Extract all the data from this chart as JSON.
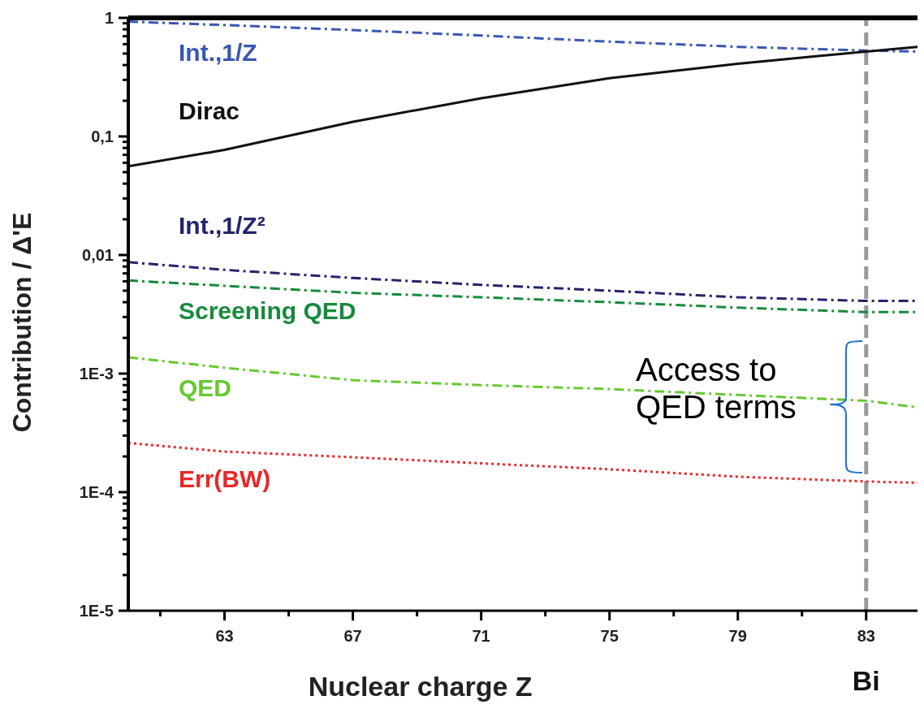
{
  "chart_data": {
    "type": "line",
    "xlabel": "Nuclear charge  Z",
    "ylabel": "Contribution / Δ'E",
    "log": "y",
    "marker": "none",
    "xlim": [
      60,
      84.6
    ],
    "ylim": [
      1e-05,
      1
    ],
    "xticks": [
      {
        "value": 61,
        "label": null
      },
      63,
      {
        "value": 65,
        "label": null
      },
      67,
      {
        "value": 69,
        "label": null
      },
      71,
      {
        "value": 73,
        "label": null
      },
      75,
      {
        "value": 77,
        "label": null
      },
      79,
      {
        "value": 81,
        "label": null
      },
      83
    ],
    "yticks": [
      {
        "value": 1e-05,
        "label": "1E-5"
      },
      {
        "value": 2e-05,
        "label": null
      },
      {
        "value": 3e-05,
        "label": null
      },
      {
        "value": 4e-05,
        "label": null
      },
      {
        "value": 5e-05,
        "label": null
      },
      {
        "value": 6e-05,
        "label": null
      },
      {
        "value": 7e-05,
        "label": null
      },
      {
        "value": 8e-05,
        "label": null
      },
      {
        "value": 9e-05,
        "label": null
      },
      {
        "value": 0.0001,
        "label": "1E-4"
      },
      {
        "value": 0.0002,
        "label": null
      },
      {
        "value": 0.0003,
        "label": null
      },
      {
        "value": 0.0004,
        "label": null
      },
      {
        "value": 0.0005,
        "label": null
      },
      {
        "value": 0.0006,
        "label": null
      },
      {
        "value": 0.0007,
        "label": null
      },
      {
        "value": 0.0008,
        "label": null
      },
      {
        "value": 0.0009,
        "label": null
      },
      {
        "value": 0.001,
        "label": "1E-3"
      },
      {
        "value": 0.002,
        "label": null
      },
      {
        "value": 0.003,
        "label": null
      },
      {
        "value": 0.004,
        "label": null
      },
      {
        "value": 0.005,
        "label": null
      },
      {
        "value": 0.006,
        "label": null
      },
      {
        "value": 0.007,
        "label": null
      },
      {
        "value": 0.008,
        "label": null
      },
      {
        "value": 0.009,
        "label": null
      },
      {
        "value": 0.01,
        "label": "0,01"
      },
      {
        "value": 0.02,
        "label": null
      },
      {
        "value": 0.03,
        "label": null
      },
      {
        "value": 0.04,
        "label": null
      },
      {
        "value": 0.05,
        "label": null
      },
      {
        "value": 0.06,
        "label": null
      },
      {
        "value": 0.07,
        "label": null
      },
      {
        "value": 0.08,
        "label": null
      },
      {
        "value": 0.09,
        "label": null
      },
      {
        "value": 0.1,
        "label": "0,1"
      },
      {
        "value": 0.2,
        "label": null
      },
      {
        "value": 0.3,
        "label": null
      },
      {
        "value": 0.4,
        "label": null
      },
      {
        "value": 0.5,
        "label": null
      },
      {
        "value": 0.6,
        "label": null
      },
      {
        "value": 0.7,
        "label": null
      },
      {
        "value": 0.8,
        "label": null
      },
      {
        "value": 0.9,
        "label": null
      },
      1
    ],
    "x": [
      60,
      63,
      67,
      71,
      75,
      79,
      83,
      84.6
    ],
    "series": [
      {
        "name": "Int.,1/Z",
        "color": "#3a56b4",
        "line_style": "dashed",
        "values": [
          0.93,
          0.87,
          0.79,
          0.71,
          0.63,
          0.57,
          0.53,
          0.52
        ]
      },
      {
        "name": "Dirac",
        "color": "#111111",
        "line_style": "solid",
        "values": [
          0.056,
          0.077,
          0.133,
          0.21,
          0.31,
          0.41,
          0.52,
          0.57
        ]
      },
      {
        "name": "Int.,1/Z²",
        "color": "#23236e",
        "line_style": "dashed",
        "values": [
          0.0087,
          0.0075,
          0.0064,
          0.0056,
          0.005,
          0.0044,
          0.0041,
          0.0041
        ]
      },
      {
        "name": "Screening QED",
        "color": "#178a3c",
        "line_style": "dashed",
        "values": [
          0.0061,
          0.0055,
          0.0048,
          0.0044,
          0.004,
          0.0036,
          0.0033,
          0.0033
        ]
      },
      {
        "name": "QED",
        "color": "#66c832",
        "line_style": "dashed",
        "values": [
          0.00137,
          0.00112,
          0.00088,
          0.0008,
          0.00074,
          0.00066,
          0.00059,
          0.00052
        ]
      },
      {
        "name": "Err(BW)",
        "color": "#e82828",
        "line_style": "dotted",
        "values": [
          0.00026,
          0.00022,
          0.000197,
          0.000175,
          0.000156,
          0.000135,
          0.000123,
          0.00012
        ]
      }
    ],
    "ref_lines": [
      {
        "axis": "x",
        "value": 83,
        "label": "Bi",
        "color": "#999999",
        "line_style": "dashed"
      }
    ],
    "annotations": [
      "Access to QED terms"
    ]
  }
}
